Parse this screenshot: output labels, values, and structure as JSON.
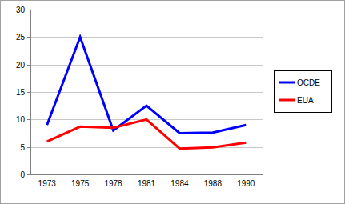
{
  "chart_data": {
    "type": "line",
    "categories": [
      "1973",
      "1975",
      "1978",
      "1981",
      "1984",
      "1988",
      "1990"
    ],
    "series": [
      {
        "name": "OCDE",
        "color": "#0000ff",
        "values": [
          9,
          25,
          8,
          12.5,
          7.5,
          7.6,
          9
        ]
      },
      {
        "name": "EUA",
        "color": "#ff0000",
        "values": [
          6,
          8.7,
          8.5,
          10,
          4.7,
          4.9,
          5.8
        ]
      }
    ],
    "ylim": [
      0,
      30
    ],
    "yticks": [
      0,
      5,
      10,
      15,
      20,
      25,
      30
    ],
    "grid": true,
    "legend": "right"
  }
}
